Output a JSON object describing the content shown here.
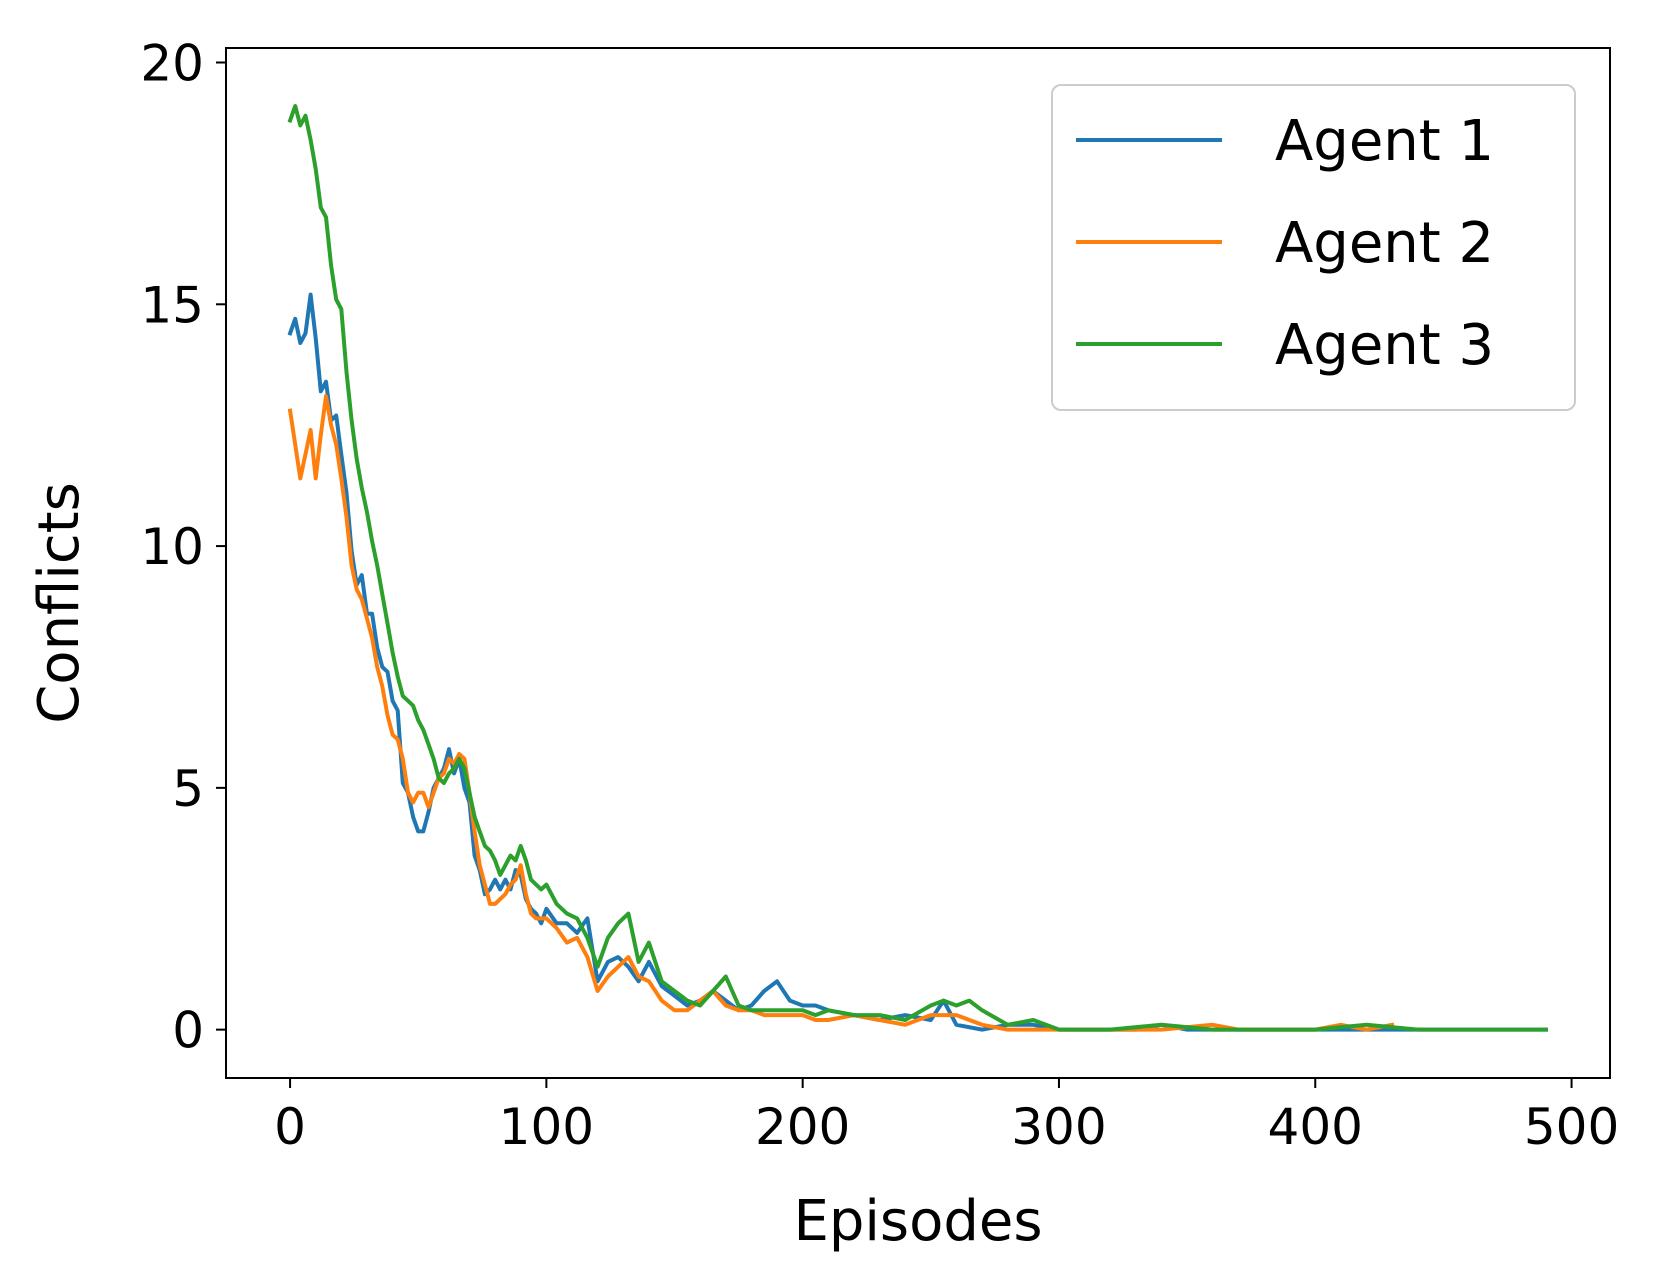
{
  "chart_data": {
    "type": "line",
    "title": "",
    "xlabel": "Episodes",
    "ylabel": "Conflicts",
    "xlim": [
      -25,
      515
    ],
    "ylim": [
      -1,
      20.3
    ],
    "xticks": [
      0,
      100,
      200,
      300,
      400,
      500
    ],
    "yticks": [
      0,
      5,
      10,
      15,
      20
    ],
    "grid": false,
    "legend_position": "upper right",
    "series": [
      {
        "name": "Agent 1",
        "color": "#1f77b4",
        "x": [
          0,
          2,
          4,
          6,
          8,
          10,
          12,
          14,
          16,
          18,
          20,
          22,
          24,
          26,
          28,
          30,
          32,
          34,
          36,
          38,
          40,
          42,
          44,
          46,
          48,
          50,
          52,
          54,
          56,
          58,
          60,
          62,
          64,
          66,
          68,
          70,
          72,
          74,
          76,
          78,
          80,
          82,
          84,
          86,
          88,
          90,
          92,
          94,
          96,
          98,
          100,
          104,
          108,
          112,
          116,
          120,
          124,
          128,
          132,
          136,
          140,
          145,
          150,
          155,
          160,
          165,
          170,
          175,
          180,
          185,
          190,
          195,
          200,
          205,
          210,
          220,
          230,
          240,
          250,
          255,
          260,
          270,
          280,
          290,
          300,
          310,
          320,
          330,
          340,
          350,
          360,
          380,
          400,
          420,
          440,
          460,
          480,
          490
        ],
        "y": [
          14.4,
          14.7,
          14.2,
          14.4,
          15.2,
          14.3,
          13.2,
          13.4,
          12.6,
          12.7,
          11.9,
          11.1,
          9.9,
          9.2,
          9.4,
          8.6,
          8.6,
          7.9,
          7.5,
          7.4,
          6.8,
          6.6,
          5.1,
          4.9,
          4.4,
          4.1,
          4.1,
          4.5,
          5.0,
          5.2,
          5.4,
          5.8,
          5.3,
          5.6,
          5.0,
          4.7,
          3.6,
          3.3,
          2.8,
          2.9,
          3.1,
          2.9,
          3.1,
          2.9,
          3.3,
          3.2,
          2.7,
          2.5,
          2.4,
          2.2,
          2.5,
          2.2,
          2.2,
          2.0,
          2.3,
          1.0,
          1.4,
          1.5,
          1.3,
          1.0,
          1.4,
          0.9,
          0.7,
          0.5,
          0.6,
          0.8,
          0.6,
          0.4,
          0.5,
          0.8,
          1.0,
          0.6,
          0.5,
          0.5,
          0.4,
          0.3,
          0.2,
          0.3,
          0.2,
          0.6,
          0.1,
          0.0,
          0.1,
          0.1,
          0.0,
          0.0,
          0.0,
          0.0,
          0.1,
          0.0,
          0.0,
          0.0,
          0.0,
          0.0,
          0.0,
          0.0,
          0.0,
          0.0
        ]
      },
      {
        "name": "Agent 2",
        "color": "#ff7f0e",
        "x": [
          0,
          2,
          4,
          6,
          8,
          10,
          12,
          14,
          16,
          18,
          20,
          22,
          24,
          26,
          28,
          30,
          32,
          34,
          36,
          38,
          40,
          42,
          44,
          46,
          48,
          50,
          52,
          54,
          56,
          58,
          60,
          62,
          64,
          66,
          68,
          70,
          72,
          74,
          76,
          78,
          80,
          82,
          84,
          86,
          88,
          90,
          92,
          94,
          96,
          98,
          100,
          104,
          108,
          112,
          116,
          120,
          124,
          128,
          132,
          136,
          140,
          145,
          150,
          155,
          160,
          165,
          170,
          175,
          180,
          185,
          190,
          195,
          200,
          205,
          210,
          220,
          230,
          240,
          250,
          255,
          260,
          270,
          280,
          290,
          300,
          320,
          340,
          360,
          370,
          380,
          400,
          410,
          420,
          430
        ],
        "y": [
          12.8,
          12.1,
          11.4,
          11.9,
          12.4,
          11.4,
          12.3,
          13.1,
          12.5,
          12.1,
          11.4,
          10.6,
          9.6,
          9.1,
          8.9,
          8.5,
          8.1,
          7.5,
          7.1,
          6.5,
          6.1,
          6.0,
          5.6,
          4.9,
          4.7,
          4.9,
          4.9,
          4.6,
          4.9,
          5.2,
          5.3,
          5.6,
          5.5,
          5.7,
          5.6,
          4.9,
          4.1,
          3.4,
          3.0,
          2.6,
          2.6,
          2.7,
          2.8,
          3.0,
          3.1,
          3.4,
          2.8,
          2.4,
          2.3,
          2.3,
          2.3,
          2.1,
          1.8,
          1.9,
          1.5,
          0.8,
          1.1,
          1.3,
          1.5,
          1.1,
          1.0,
          0.6,
          0.4,
          0.4,
          0.6,
          0.8,
          0.5,
          0.4,
          0.4,
          0.3,
          0.3,
          0.3,
          0.3,
          0.2,
          0.2,
          0.3,
          0.2,
          0.1,
          0.3,
          0.3,
          0.3,
          0.1,
          0.0,
          0.0,
          0.0,
          0.0,
          0.0,
          0.1,
          0.0,
          0.0,
          0.0,
          0.1,
          0.0,
          0.1
        ]
      },
      {
        "name": "Agent 3",
        "color": "#2ca02c",
        "x": [
          0,
          2,
          4,
          6,
          8,
          10,
          12,
          14,
          16,
          18,
          20,
          22,
          24,
          26,
          28,
          30,
          32,
          34,
          36,
          38,
          40,
          42,
          44,
          46,
          48,
          50,
          52,
          54,
          56,
          58,
          60,
          62,
          64,
          66,
          68,
          70,
          72,
          74,
          76,
          78,
          80,
          82,
          84,
          86,
          88,
          90,
          92,
          94,
          96,
          98,
          100,
          104,
          108,
          112,
          116,
          120,
          124,
          128,
          132,
          136,
          140,
          145,
          150,
          155,
          160,
          165,
          170,
          175,
          180,
          185,
          190,
          195,
          200,
          205,
          210,
          220,
          230,
          240,
          250,
          255,
          260,
          265,
          270,
          280,
          290,
          300,
          320,
          340,
          360,
          380,
          400,
          420,
          440,
          460,
          480,
          490
        ],
        "y": [
          18.8,
          19.1,
          18.7,
          18.9,
          18.4,
          17.8,
          17.0,
          16.8,
          15.8,
          15.1,
          14.9,
          13.6,
          12.6,
          11.8,
          11.2,
          10.7,
          10.1,
          9.6,
          9.0,
          8.4,
          7.8,
          7.3,
          6.9,
          6.8,
          6.7,
          6.4,
          6.2,
          5.9,
          5.6,
          5.2,
          5.1,
          5.3,
          5.4,
          5.6,
          5.4,
          4.9,
          4.4,
          4.1,
          3.8,
          3.7,
          3.5,
          3.2,
          3.4,
          3.6,
          3.5,
          3.8,
          3.5,
          3.1,
          3.0,
          2.9,
          3.0,
          2.6,
          2.4,
          2.3,
          1.9,
          1.3,
          1.9,
          2.2,
          2.4,
          1.4,
          1.8,
          1.0,
          0.8,
          0.6,
          0.5,
          0.8,
          1.1,
          0.5,
          0.4,
          0.4,
          0.4,
          0.4,
          0.4,
          0.3,
          0.4,
          0.3,
          0.3,
          0.2,
          0.5,
          0.6,
          0.5,
          0.6,
          0.4,
          0.1,
          0.2,
          0.0,
          0.0,
          0.1,
          0.0,
          0.0,
          0.0,
          0.1,
          0.0,
          0.0,
          0.0,
          0.0
        ]
      }
    ]
  }
}
